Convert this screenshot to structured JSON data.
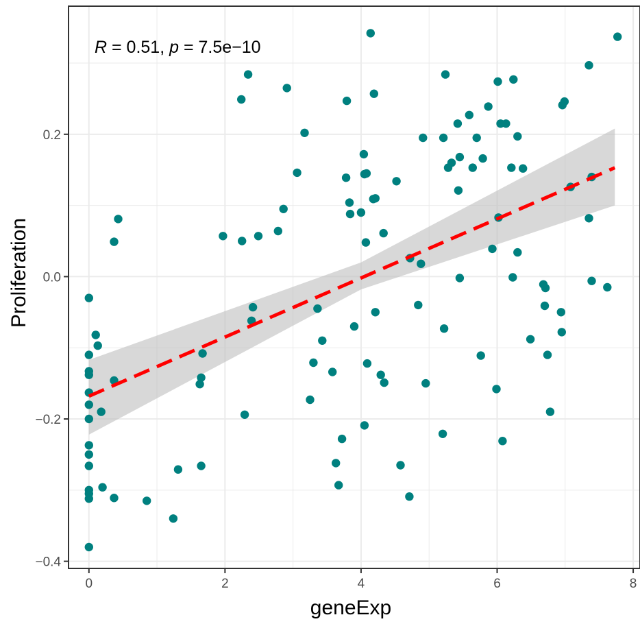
{
  "chart_data": {
    "type": "scatter",
    "title": "",
    "xlabel": "geneExp",
    "ylabel": "Proliferation",
    "xlim": [
      -0.3,
      8.1
    ],
    "ylim": [
      -0.41,
      0.38
    ],
    "x_ticks": [
      0,
      2,
      4,
      6,
      8
    ],
    "x_tick_labels": [
      "0",
      "2",
      "4",
      "6",
      "8"
    ],
    "y_ticks": [
      -0.4,
      -0.2,
      0.0,
      0.2
    ],
    "y_tick_labels": [
      "−0.4",
      "−0.2",
      "0.0",
      "0.2"
    ],
    "grid": true,
    "legend": "none",
    "annotation": {
      "r_symbol": "R",
      "r_text": " = 0.51, ",
      "p_symbol": "p",
      "p_text": " = 7.5e−10"
    },
    "colors": {
      "points": "#00807f",
      "fit_line": "#ff0000",
      "confidence_band": "#bebebe",
      "grid_major": "#ebebeb",
      "panel_border": "#333333"
    },
    "fit_line": {
      "x": [
        0,
        7.73
      ],
      "y": [
        -0.168,
        0.153
      ]
    },
    "confidence_band": {
      "x": [
        0,
        4,
        7.73
      ],
      "lower": [
        -0.222,
        -0.018,
        0.1
      ],
      "upper": [
        -0.117,
        0.02,
        0.208
      ]
    },
    "points": [
      [
        0.0,
        -0.03
      ],
      [
        0.0,
        -0.11
      ],
      [
        0.0,
        -0.133
      ],
      [
        0.0,
        -0.138
      ],
      [
        0.0,
        -0.163
      ],
      [
        0.0,
        -0.18
      ],
      [
        0.0,
        -0.2
      ],
      [
        0.0,
        -0.237
      ],
      [
        0.0,
        -0.25
      ],
      [
        0.0,
        -0.266
      ],
      [
        0.0,
        -0.3
      ],
      [
        0.0,
        -0.305
      ],
      [
        0.0,
        -0.312
      ],
      [
        0.0,
        -0.38
      ],
      [
        0.1,
        -0.082
      ],
      [
        0.13,
        -0.097
      ],
      [
        0.18,
        -0.19
      ],
      [
        0.2,
        -0.296
      ],
      [
        0.37,
        0.049
      ],
      [
        0.37,
        -0.146
      ],
      [
        0.37,
        -0.311
      ],
      [
        0.43,
        0.081
      ],
      [
        0.85,
        -0.315
      ],
      [
        1.24,
        -0.34
      ],
      [
        1.31,
        -0.271
      ],
      [
        1.63,
        -0.151
      ],
      [
        1.65,
        -0.142
      ],
      [
        1.67,
        -0.108
      ],
      [
        1.65,
        -0.266
      ],
      [
        1.97,
        0.057
      ],
      [
        2.25,
        0.05
      ],
      [
        2.24,
        0.249
      ],
      [
        2.29,
        -0.194
      ],
      [
        2.34,
        0.284
      ],
      [
        2.39,
        -0.062
      ],
      [
        2.41,
        -0.043
      ],
      [
        2.49,
        0.057
      ],
      [
        2.78,
        0.064
      ],
      [
        2.86,
        0.095
      ],
      [
        2.91,
        0.265
      ],
      [
        3.06,
        0.146
      ],
      [
        3.17,
        0.202
      ],
      [
        3.25,
        -0.173
      ],
      [
        3.3,
        -0.121
      ],
      [
        3.36,
        -0.045
      ],
      [
        3.43,
        -0.09
      ],
      [
        3.58,
        -0.134
      ],
      [
        3.63,
        -0.262
      ],
      [
        3.67,
        -0.293
      ],
      [
        3.72,
        -0.228
      ],
      [
        3.78,
        0.139
      ],
      [
        3.79,
        0.247
      ],
      [
        3.83,
        0.104
      ],
      [
        3.84,
        0.088
      ],
      [
        3.9,
        -0.07
      ],
      [
        4.0,
        0.09
      ],
      [
        4.04,
        0.172
      ],
      [
        4.05,
        0.144
      ],
      [
        4.05,
        -0.209
      ],
      [
        4.07,
        0.048
      ],
      [
        4.08,
        0.145
      ],
      [
        4.09,
        -0.122
      ],
      [
        4.14,
        0.342
      ],
      [
        4.18,
        0.109
      ],
      [
        4.19,
        0.257
      ],
      [
        4.21,
        0.11
      ],
      [
        4.21,
        -0.05
      ],
      [
        4.29,
        -0.138
      ],
      [
        4.33,
        0.061
      ],
      [
        4.34,
        -0.149
      ],
      [
        4.52,
        0.134
      ],
      [
        4.58,
        -0.265
      ],
      [
        4.71,
        -0.309
      ],
      [
        4.72,
        0.026
      ],
      [
        4.84,
        -0.04
      ],
      [
        4.91,
        0.195
      ],
      [
        4.88,
        0.018
      ],
      [
        4.95,
        -0.15
      ],
      [
        5.21,
        0.195
      ],
      [
        5.2,
        -0.221
      ],
      [
        5.22,
        -0.073
      ],
      [
        5.24,
        0.284
      ],
      [
        5.28,
        0.153
      ],
      [
        5.33,
        0.16
      ],
      [
        5.42,
        0.215
      ],
      [
        5.43,
        0.121
      ],
      [
        5.45,
        0.168
      ],
      [
        5.45,
        -0.002
      ],
      [
        5.59,
        0.227
      ],
      [
        5.64,
        0.153
      ],
      [
        5.7,
        0.195
      ],
      [
        5.76,
        -0.111
      ],
      [
        5.79,
        0.166
      ],
      [
        5.87,
        0.239
      ],
      [
        5.93,
        0.039
      ],
      [
        5.99,
        -0.158
      ],
      [
        6.01,
        0.274
      ],
      [
        6.02,
        0.083
      ],
      [
        6.05,
        0.215
      ],
      [
        6.08,
        -0.231
      ],
      [
        6.13,
        0.215
      ],
      [
        6.21,
        0.153
      ],
      [
        6.23,
        -0.001
      ],
      [
        6.24,
        0.277
      ],
      [
        6.3,
        0.197
      ],
      [
        6.3,
        0.034
      ],
      [
        6.38,
        0.152
      ],
      [
        6.49,
        -0.088
      ],
      [
        6.68,
        -0.011
      ],
      [
        6.7,
        -0.041
      ],
      [
        6.71,
        -0.016
      ],
      [
        6.74,
        -0.11
      ],
      [
        6.78,
        -0.19
      ],
      [
        6.94,
        -0.05
      ],
      [
        6.95,
        -0.078
      ],
      [
        6.96,
        0.241
      ],
      [
        6.99,
        0.246
      ],
      [
        7.08,
        0.126
      ],
      [
        7.35,
        0.297
      ],
      [
        7.35,
        0.082
      ],
      [
        7.39,
        0.14
      ],
      [
        7.39,
        -0.006
      ],
      [
        7.62,
        -0.015
      ],
      [
        7.77,
        0.337
      ]
    ]
  }
}
